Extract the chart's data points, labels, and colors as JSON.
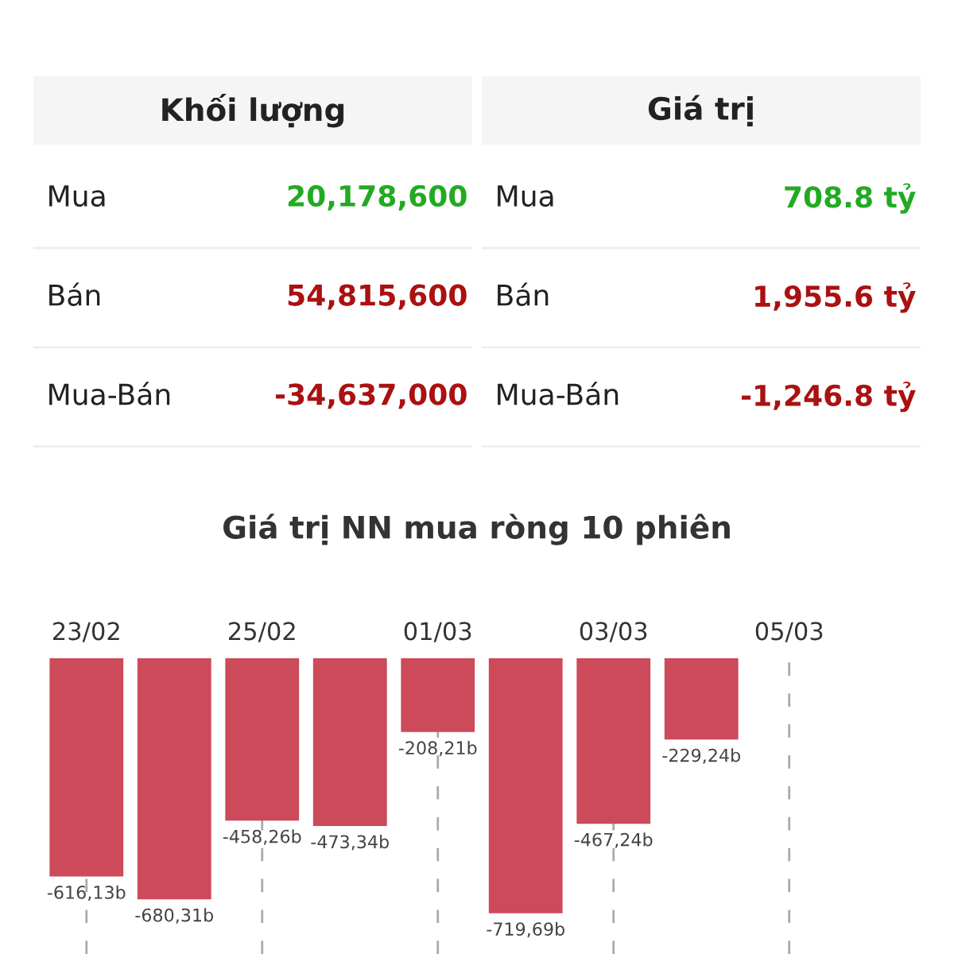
{
  "chart_data": [
    {
      "type": "other",
      "title": "Khối lượng",
      "annotations": [
        "Mua",
        "20,178,600",
        "Bán",
        "54,815,600",
        "Mua-Bán",
        "-34,637,000"
      ],
      "colors": [
        "#222222",
        "#22aa22",
        "#222222",
        "#aa1111",
        "#222222",
        "#aa1111"
      ]
    },
    {
      "type": "other",
      "title": "Giá trị",
      "annotations": [
        "Mua",
        "708.8 tỷ",
        "Bán",
        "1,955.6 tỷ",
        "Mua-Bán",
        "-1,246.8 tỷ"
      ],
      "colors": [
        "#222222",
        "#22aa22",
        "#222222",
        "#aa1111",
        "#222222",
        "#aa1111"
      ]
    },
    {
      "type": "bar",
      "title": "Giá trị NN mua ròng 10 phiên",
      "color": "#cc4a5a",
      "categories": [
        "23/02",
        null,
        "25/02",
        null,
        "01/03",
        null,
        "03/03",
        null,
        "05/03",
        null
      ],
      "values": [
        -616.13,
        -680.31,
        -458.26,
        -473.34,
        -208.21,
        -719.69,
        -467.24,
        -229.24,
        null,
        null
      ],
      "value_labels": [
        "-616,13b",
        "-680,31b",
        "-458,26b",
        "-473,34b",
        "-208,21b",
        "-719,69b",
        "-467,24b",
        "-229,24b",
        null,
        null
      ],
      "grid": "x"
    }
  ]
}
